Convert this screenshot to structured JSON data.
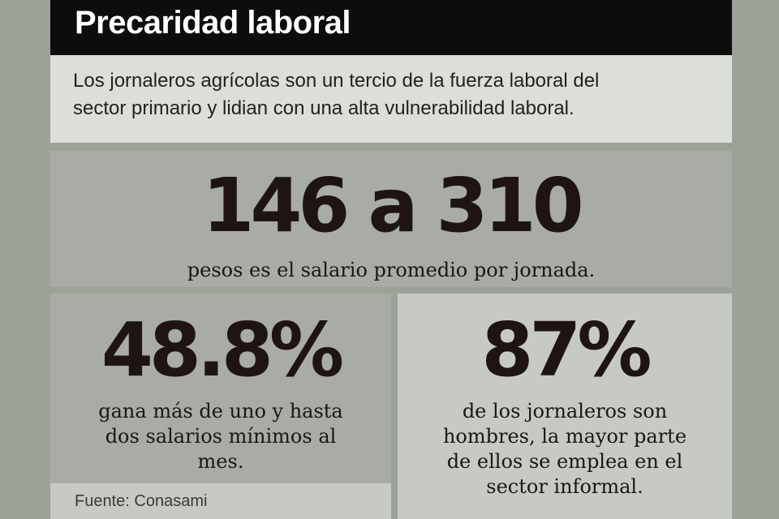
{
  "header": {
    "title": "Precaridad laboral"
  },
  "intro": {
    "lines": [
      "Los jornaleros agrícolas son un tercio de la fuerza laboral del",
      "sector primario y lidian con una alta  vulnerabilidad laboral."
    ]
  },
  "salary": {
    "figure": "146 a 310",
    "caption": "pesos es el salario promedio por jornada."
  },
  "minimum_wage": {
    "figure": "48.8%",
    "caption_lines": [
      "gana más de uno y hasta",
      "dos salarios mínimos al",
      "mes."
    ]
  },
  "men": {
    "figure": "87%",
    "caption_lines": [
      "de los jornaleros son",
      "hombres, la mayor parte",
      "de ellos se emplea en el",
      "sector informal."
    ]
  },
  "source": "Fuente: Conasami"
}
